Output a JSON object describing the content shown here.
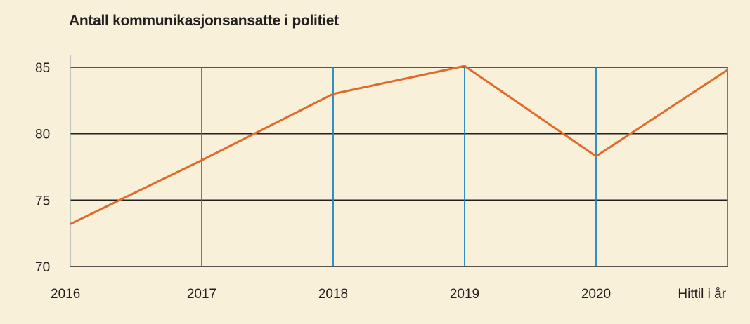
{
  "chart_data": {
    "type": "line",
    "title": "Antall kommunikasjonsansatte i politiet",
    "xlabel": "",
    "ylabel": "",
    "categories": [
      "2016",
      "2017",
      "2018",
      "2019",
      "2020",
      "Hittil i år"
    ],
    "values": [
      73.2,
      78,
      83,
      85.1,
      78.3,
      84.8
    ],
    "ylim": [
      70,
      85
    ],
    "yticks": [
      "70",
      "75",
      "80",
      "85"
    ],
    "grid": true,
    "colors": {
      "background": "#f8f0d9",
      "line": "#e06a2c",
      "horizontal_grid": "#231f20",
      "vertical_grid": "#1a86c1",
      "text": "#231f20"
    }
  }
}
